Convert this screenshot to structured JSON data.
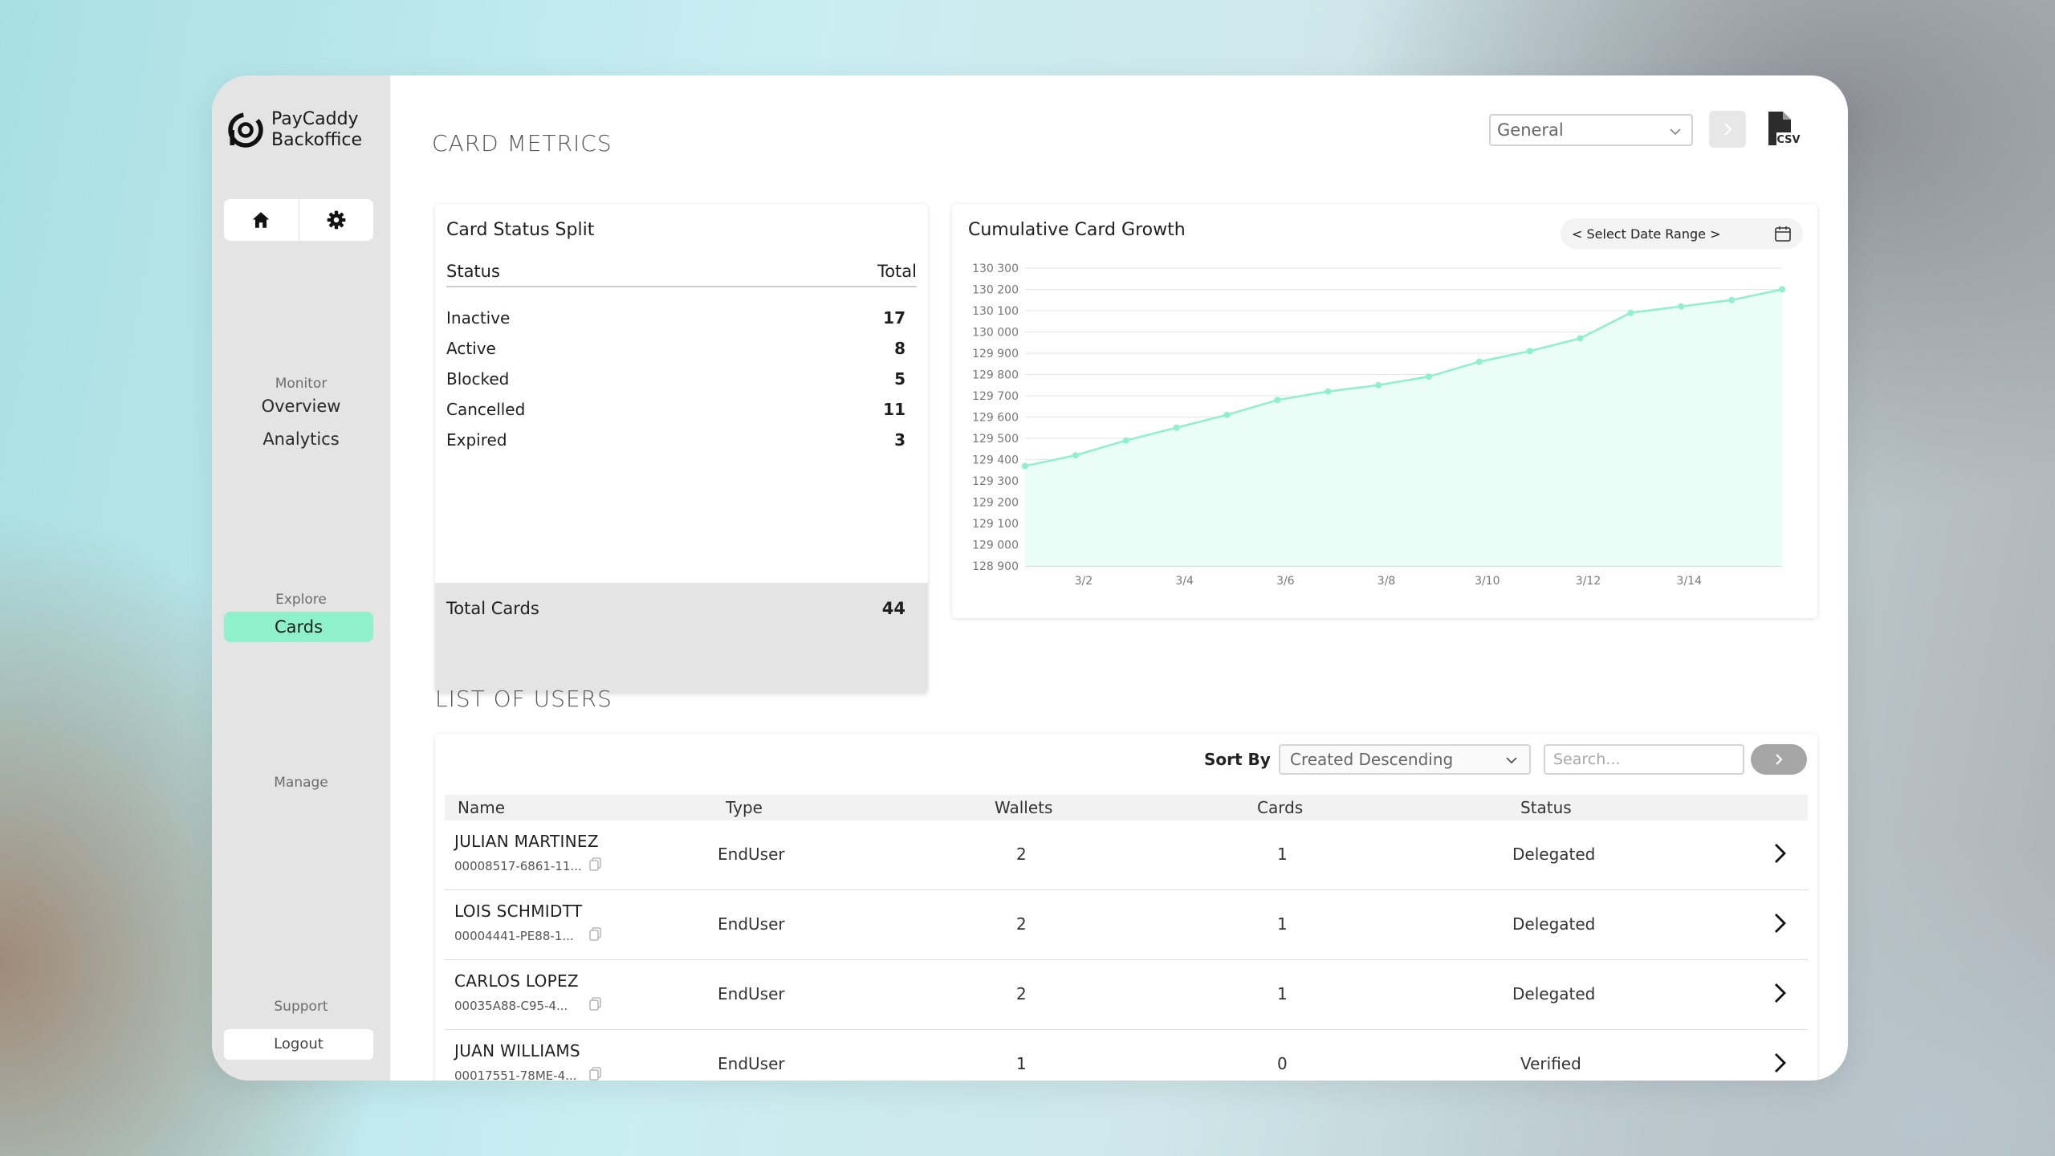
{
  "app": {
    "brand_line1": "PayCaddy",
    "brand_line2": "Backoffice"
  },
  "sidebar": {
    "quick_icons": [
      "home-icon",
      "gear-icon"
    ],
    "monitor_heading": "Monitor",
    "monitor_items": [
      "Overview",
      "Analytics"
    ],
    "explore_heading": "Explore",
    "explore_active": "Cards",
    "manage_heading": "Manage",
    "support_heading": "Support",
    "logout_label": "Logout"
  },
  "header": {
    "title": "CARD METRICS",
    "filter_value": "General",
    "csv_icon": "csv-file-icon"
  },
  "status_split": {
    "title": "Card Status Split",
    "col_status": "Status",
    "col_total": "Total",
    "rows": [
      {
        "label": "Inactive",
        "value": "17"
      },
      {
        "label": "Active",
        "value": "8"
      },
      {
        "label": "Blocked",
        "value": "5"
      },
      {
        "label": "Cancelled",
        "value": "11"
      },
      {
        "label": "Expired",
        "value": "3"
      }
    ],
    "total_label": "Total Cards",
    "total_value": "44"
  },
  "growth": {
    "title": "Cumulative Card Growth",
    "date_range_label": "< Select Date Range >"
  },
  "chart_data": {
    "type": "area",
    "title": "Cumulative Card Growth",
    "x": [
      "3/1",
      "3/2",
      "3/3",
      "3/4",
      "3/5",
      "3/6",
      "3/7",
      "3/8",
      "3/9",
      "3/10",
      "3/11",
      "3/12",
      "3/13",
      "3/14",
      "3/15",
      "3/16"
    ],
    "x_tick_labels": [
      "3/2",
      "3/4",
      "3/6",
      "3/8",
      "3/10",
      "3/12",
      "3/14"
    ],
    "values": [
      129370,
      129420,
      129490,
      129550,
      129610,
      129680,
      129720,
      129750,
      129790,
      129860,
      129910,
      129970,
      130090,
      130120,
      130150,
      130200
    ],
    "y_ticks": [
      128900,
      129000,
      129100,
      129200,
      129300,
      129400,
      129500,
      129600,
      129700,
      129800,
      129900,
      130000,
      130100,
      130200,
      130300
    ],
    "ylim": [
      128900,
      130300
    ],
    "grid": true,
    "line_color": "#8ff0cd",
    "fill_color": "#eafdf6"
  },
  "users": {
    "title": "LIST OF USERS",
    "sort_label": "Sort By",
    "sort_value": "Created Descending",
    "search_placeholder": "Search...",
    "columns": [
      "Name",
      "Type",
      "Wallets",
      "Cards",
      "Status"
    ],
    "rows": [
      {
        "name": "JULIAN MARTINEZ",
        "id": "00008517-6861-11...",
        "type": "EndUser",
        "wallets": "2",
        "cards": "1",
        "status": "Delegated"
      },
      {
        "name": "LOIS SCHMIDTT",
        "id": "00004441-PE88-1...",
        "type": "EndUser",
        "wallets": "2",
        "cards": "1",
        "status": "Delegated"
      },
      {
        "name": "CARLOS LOPEZ",
        "id": "00035A88-C95-4...",
        "type": "EndUser",
        "wallets": "2",
        "cards": "1",
        "status": "Delegated"
      },
      {
        "name": "JUAN WILLIAMS",
        "id": "00017551-78ME-4...",
        "type": "EndUser",
        "wallets": "1",
        "cards": "0",
        "status": "Verified"
      }
    ]
  },
  "colors": {
    "accent": "#8ff0cd",
    "sidebar_bg": "#e4e4e4"
  }
}
